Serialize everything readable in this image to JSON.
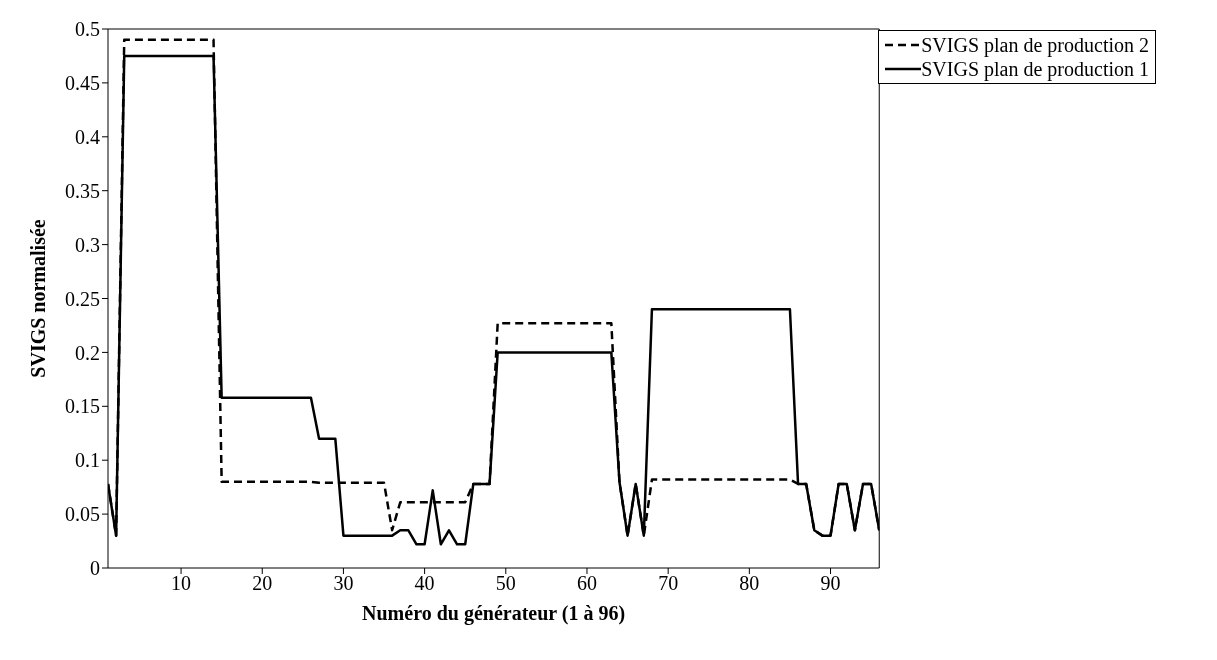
{
  "chart_data": {
    "type": "line",
    "xlabel": "Numéro du générateur (1 à 96)",
    "ylabel": "SVIGS normalisée",
    "xlim": [
      1,
      96
    ],
    "xticks": [
      10,
      20,
      30,
      40,
      50,
      60,
      70,
      80,
      90
    ],
    "ylim": [
      0,
      0.5
    ],
    "yticks": [
      0,
      0.05,
      0.1,
      0.15,
      0.2,
      0.25,
      0.3,
      0.35,
      0.4,
      0.45,
      0.5
    ],
    "grid": false,
    "legend": "top right",
    "marker": "none",
    "x": [
      1,
      2,
      3,
      4,
      5,
      6,
      7,
      8,
      9,
      10,
      11,
      12,
      13,
      14,
      15,
      16,
      17,
      18,
      19,
      20,
      21,
      22,
      23,
      24,
      25,
      26,
      27,
      28,
      29,
      30,
      31,
      32,
      33,
      34,
      35,
      36,
      37,
      38,
      39,
      40,
      41,
      42,
      43,
      44,
      45,
      46,
      47,
      48,
      49,
      50,
      51,
      52,
      53,
      54,
      55,
      56,
      57,
      58,
      59,
      60,
      61,
      62,
      63,
      64,
      65,
      66,
      67,
      68,
      69,
      70,
      71,
      72,
      73,
      74,
      75,
      76,
      77,
      78,
      79,
      80,
      81,
      82,
      83,
      84,
      85,
      86,
      87,
      88,
      89,
      90,
      91,
      92,
      93,
      94,
      95,
      96
    ],
    "series": [
      {
        "name": "SVIGS plan de production 2",
        "color": "#000000",
        "line_style": "dashed",
        "values": [
          0.078,
          0.03,
          0.49,
          0.49,
          0.49,
          0.49,
          0.49,
          0.49,
          0.49,
          0.49,
          0.49,
          0.49,
          0.49,
          0.49,
          0.08,
          0.08,
          0.08,
          0.08,
          0.08,
          0.08,
          0.08,
          0.08,
          0.08,
          0.08,
          0.08,
          0.08,
          0.079,
          0.079,
          0.079,
          0.079,
          0.079,
          0.079,
          0.079,
          0.079,
          0.079,
          0.035,
          0.061,
          0.061,
          0.061,
          0.061,
          0.061,
          0.061,
          0.061,
          0.061,
          0.061,
          0.078,
          0.078,
          0.078,
          0.227,
          0.227,
          0.227,
          0.227,
          0.227,
          0.227,
          0.227,
          0.227,
          0.227,
          0.227,
          0.227,
          0.227,
          0.227,
          0.227,
          0.227,
          0.08,
          0.03,
          0.078,
          0.03,
          0.082,
          0.082,
          0.082,
          0.082,
          0.082,
          0.082,
          0.082,
          0.082,
          0.082,
          0.082,
          0.082,
          0.082,
          0.082,
          0.082,
          0.082,
          0.082,
          0.082,
          0.082,
          0.078,
          0.078,
          0.035,
          0.03,
          0.03,
          0.078,
          0.078,
          0.035,
          0.078,
          0.078,
          0.035
        ]
      },
      {
        "name": "SVIGS plan de production 1",
        "color": "#000000",
        "line_style": "solid",
        "values": [
          0.078,
          0.03,
          0.475,
          0.475,
          0.475,
          0.475,
          0.475,
          0.475,
          0.475,
          0.475,
          0.475,
          0.475,
          0.475,
          0.475,
          0.158,
          0.158,
          0.158,
          0.158,
          0.158,
          0.158,
          0.158,
          0.158,
          0.158,
          0.158,
          0.158,
          0.158,
          0.12,
          0.12,
          0.12,
          0.03,
          0.03,
          0.03,
          0.03,
          0.03,
          0.03,
          0.03,
          0.035,
          0.035,
          0.022,
          0.022,
          0.072,
          0.022,
          0.035,
          0.022,
          0.022,
          0.078,
          0.078,
          0.078,
          0.2,
          0.2,
          0.2,
          0.2,
          0.2,
          0.2,
          0.2,
          0.2,
          0.2,
          0.2,
          0.2,
          0.2,
          0.2,
          0.2,
          0.2,
          0.08,
          0.03,
          0.078,
          0.03,
          0.24,
          0.24,
          0.24,
          0.24,
          0.24,
          0.24,
          0.24,
          0.24,
          0.24,
          0.24,
          0.24,
          0.24,
          0.24,
          0.24,
          0.24,
          0.24,
          0.24,
          0.24,
          0.078,
          0.078,
          0.035,
          0.03,
          0.03,
          0.078,
          0.078,
          0.035,
          0.078,
          0.078,
          0.035
        ]
      }
    ]
  }
}
